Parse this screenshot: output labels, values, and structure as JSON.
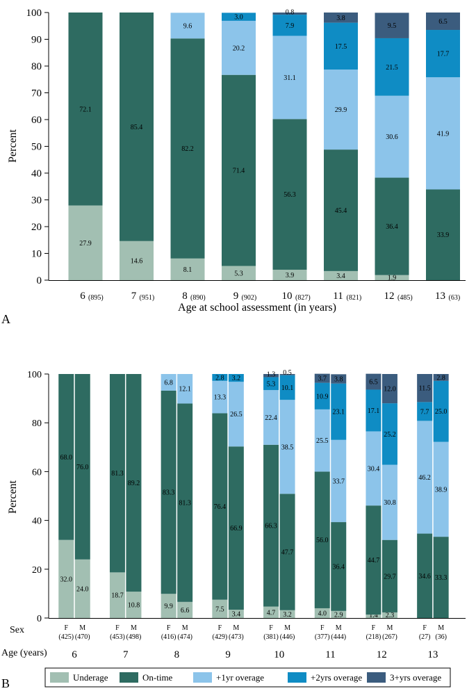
{
  "categories_colors": {
    "Underage": "#a2bfb2",
    "On-time": "#2e6b61",
    "+1yr overage": "#8cc4ea",
    "+2yrs overage": "#0f8cc4",
    "3+yrs overage": "#3b5c7e"
  },
  "chart_data": [
    {
      "type": "bar",
      "stacked": true,
      "panel": "A",
      "ylabel": "Percent",
      "xlabel": "Age at school assessment (in years)",
      "ylim": [
        0,
        100
      ],
      "yticks": [
        "0",
        "10",
        "20",
        "30",
        "40",
        "50",
        "60",
        "70",
        "80",
        "90",
        "100"
      ],
      "categories": [
        "6",
        "7",
        "8",
        "9",
        "10",
        "11",
        "12",
        "13"
      ],
      "counts": [
        "(895)",
        "(951)",
        "(890)",
        "(902)",
        "(827)",
        "(821)",
        "(485)",
        "(63)"
      ],
      "series": [
        {
          "name": "Underage",
          "values": [
            27.9,
            14.6,
            8.1,
            5.3,
            3.9,
            3.4,
            1.9,
            0
          ]
        },
        {
          "name": "On-time",
          "values": [
            72.1,
            85.4,
            82.2,
            71.4,
            56.3,
            45.4,
            36.4,
            33.9
          ]
        },
        {
          "name": "+1yr overage",
          "values": [
            0,
            0,
            9.6,
            20.2,
            31.1,
            29.9,
            30.6,
            41.9
          ]
        },
        {
          "name": "+2yrs overage",
          "values": [
            0,
            0,
            0,
            3.0,
            7.9,
            17.5,
            21.5,
            17.7
          ]
        },
        {
          "name": "3+yrs overage",
          "values": [
            0,
            0,
            0,
            0,
            0.8,
            3.8,
            9.5,
            6.5
          ]
        }
      ],
      "value_labels": [
        [
          "27.9",
          "14.6",
          "8.1",
          "5.3",
          "3.9",
          "3.4",
          "1.9",
          ""
        ],
        [
          "72.1",
          "85.4",
          "82.2",
          "71.4",
          "56.3",
          "45.4",
          "36.4",
          "33.9"
        ],
        [
          "",
          "",
          "9.6",
          "20.2",
          "31.1",
          "29.9",
          "30.6",
          "41.9"
        ],
        [
          "",
          "",
          "",
          "3.0",
          "7.9",
          "17.5",
          "21.5",
          "17.7"
        ],
        [
          "",
          "",
          "",
          "",
          "0.8",
          "3.8",
          "9.5",
          "6.5"
        ]
      ]
    },
    {
      "type": "bar",
      "stacked": true,
      "panel": "B",
      "ylabel": "Percent",
      "row_label_sex": "Sex",
      "row_label_age": "Age (years)",
      "ylim": [
        0,
        100
      ],
      "yticks": [
        "0",
        "20",
        "40",
        "60",
        "80",
        "100"
      ],
      "ages": [
        "6",
        "7",
        "8",
        "9",
        "10",
        "11",
        "12",
        "13"
      ],
      "bars": [
        {
          "sex": "F",
          "n": "(425)",
          "values": [
            32.0,
            68.0,
            0,
            0,
            0
          ],
          "labels": [
            "32.0",
            "68.0",
            "",
            "",
            ""
          ]
        },
        {
          "sex": "M",
          "n": "(470)",
          "values": [
            24.0,
            76.0,
            0,
            0,
            0
          ],
          "labels": [
            "24.0",
            "76.0",
            "",
            "",
            ""
          ]
        },
        {
          "sex": "F",
          "n": "(453)",
          "values": [
            18.7,
            81.3,
            0,
            0,
            0
          ],
          "labels": [
            "18.7",
            "81.3",
            "",
            "",
            ""
          ]
        },
        {
          "sex": "M",
          "n": "(498)",
          "values": [
            10.8,
            89.2,
            0,
            0,
            0
          ],
          "labels": [
            "10.8",
            "89.2",
            "",
            "",
            ""
          ]
        },
        {
          "sex": "F",
          "n": "(416)",
          "values": [
            9.9,
            83.3,
            6.8,
            0,
            0
          ],
          "labels": [
            "9.9",
            "83.3",
            "6.8",
            "",
            ""
          ]
        },
        {
          "sex": "M",
          "n": "(474)",
          "values": [
            6.6,
            81.3,
            12.1,
            0,
            0
          ],
          "labels": [
            "6.6",
            "81.3",
            "12.1",
            "",
            ""
          ]
        },
        {
          "sex": "F",
          "n": "(429)",
          "values": [
            7.5,
            76.4,
            13.3,
            2.8,
            0
          ],
          "labels": [
            "7.5",
            "76.4",
            "13.3",
            "2.8",
            ""
          ]
        },
        {
          "sex": "M",
          "n": "(473)",
          "values": [
            3.4,
            66.9,
            26.5,
            3.2,
            0
          ],
          "labels": [
            "3.4",
            "66.9",
            "26.5",
            "3.2",
            ""
          ]
        },
        {
          "sex": "F",
          "n": "(381)",
          "values": [
            4.7,
            66.3,
            22.4,
            5.3,
            1.3
          ],
          "labels": [
            "4.7",
            "66.3",
            "22.4",
            "5.3",
            "1.3"
          ]
        },
        {
          "sex": "M",
          "n": "(446)",
          "values": [
            3.2,
            47.7,
            38.5,
            10.1,
            0.5
          ],
          "labels": [
            "3.2",
            "47.7",
            "38.5",
            "10.1",
            "0.5"
          ]
        },
        {
          "sex": "F",
          "n": "(377)",
          "values": [
            4.0,
            56.0,
            25.5,
            10.9,
            3.7
          ],
          "labels": [
            "4.0",
            "56.0",
            "25.5",
            "10.9",
            "3.7"
          ]
        },
        {
          "sex": "M",
          "n": "(444)",
          "values": [
            2.9,
            36.4,
            33.7,
            23.1,
            3.8
          ],
          "labels": [
            "2.9",
            "36.4",
            "33.7",
            "23.1",
            "3.8"
          ]
        },
        {
          "sex": "F",
          "n": "(218)",
          "values": [
            1.4,
            44.7,
            30.4,
            17.1,
            6.5
          ],
          "labels": [
            "1.4",
            "44.7",
            "30.4",
            "17.1",
            "6.5"
          ]
        },
        {
          "sex": "M",
          "n": "(267)",
          "values": [
            2.3,
            29.7,
            30.8,
            25.2,
            12.0
          ],
          "labels": [
            "2.3",
            "29.7",
            "30.8",
            "25.2",
            "12.0"
          ]
        },
        {
          "sex": "F",
          "n": "(27)",
          "values": [
            0,
            34.6,
            46.2,
            7.7,
            11.5
          ],
          "labels": [
            "",
            "34.6",
            "46.2",
            "7.7",
            "11.5"
          ]
        },
        {
          "sex": "M",
          "n": "(36)",
          "values": [
            0,
            33.3,
            38.9,
            25.0,
            2.8
          ],
          "labels": [
            "",
            "33.3",
            "38.9",
            "25.0",
            "2.8"
          ]
        }
      ],
      "legend": [
        "Underage",
        "On-time",
        "+1yr overage",
        "+2yrs overage",
        "3+yrs overage"
      ],
      "legend_placement": "bottom"
    }
  ]
}
